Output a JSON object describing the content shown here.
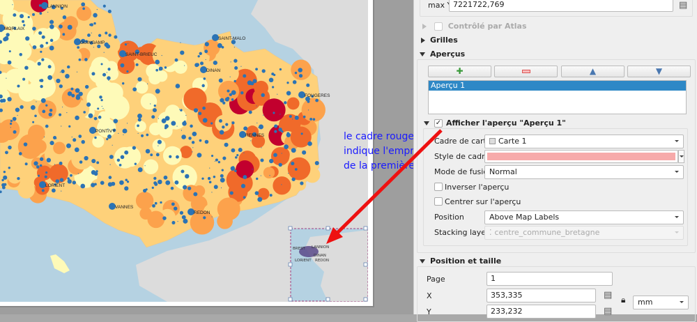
{
  "map": {
    "cities": [
      {
        "name": "LANNION",
        "lon": 68,
        "lat": 11
      },
      {
        "name": "MORLAIX",
        "lon": 6,
        "lat": 43
      },
      {
        "name": "GUINGAMP",
        "lon": 115,
        "lat": 63
      },
      {
        "name": "SAINT-BRIEUC",
        "lon": 180,
        "lat": 80
      },
      {
        "name": "SAINT-MALO",
        "lon": 313,
        "lat": 57
      },
      {
        "name": "DINAN",
        "lon": 296,
        "lat": 103
      },
      {
        "name": "FOUGERES",
        "lon": 437,
        "lat": 139
      },
      {
        "name": "PONTIVY",
        "lon": 137,
        "lat": 190
      },
      {
        "name": "RENNES",
        "lon": 352,
        "lat": 196
      },
      {
        "name": "LORIENT",
        "lon": 65,
        "lat": 268
      },
      {
        "name": "VANNES",
        "lon": 165,
        "lat": 299
      },
      {
        "name": "REDON",
        "lon": 278,
        "lat": 307
      }
    ],
    "overview_labels": [
      "BREST",
      "LANNION",
      "DINAN",
      "LORIENT",
      "REDON"
    ],
    "colors": {
      "sea": "#b5d2e2",
      "land": "#dcdcdc",
      "class1": "#fefab8",
      "class2": "#fed17a",
      "class3": "#fca24c",
      "class4": "#f06a2a",
      "class5": "#c2002e",
      "dots": "#2b73b5",
      "overview_frame": "#f4a6a6"
    }
  },
  "annotation": {
    "lines": [
      "le cadre rouge",
      "indique l'emprise",
      "de la première carte."
    ],
    "color": "#1a1aff",
    "arrow_color": "#ee1111"
  },
  "panel": {
    "extent": {
      "max_y_label": "max Y",
      "max_y_value": "7221722,769"
    },
    "atlas": {
      "label": "Contrôlé par Atlas",
      "checked": false,
      "enabled": false
    },
    "grids": {
      "label": "Grilles",
      "expanded": false
    },
    "overviews": {
      "label": "Aperçus",
      "expanded": true,
      "buttons": {
        "add": "add-icon",
        "remove": "remove-icon",
        "up": "up-icon",
        "down": "down-icon"
      },
      "list": [
        "Aperçu 1"
      ],
      "selected": "Aperçu 1",
      "show_label": "Afficher l'aperçu \"Aperçu 1\"",
      "show_checked": true,
      "map_frame_label": "Cadre de carte",
      "map_frame_value": "Carte 1",
      "frame_style_label": "Style de cadre",
      "frame_style_color": "#f7aaaa",
      "blend_label": "Mode de fusion",
      "blend_value": "Normal",
      "invert_label": "Inverser l'aperçu",
      "invert_checked": false,
      "center_label": "Centrer sur l'aperçu",
      "center_checked": false,
      "position_label": "Position",
      "position_value": "Above Map Labels",
      "stacking_label": "Stacking layer",
      "stacking_value": "centre_commune_bretagne"
    },
    "position_size": {
      "label": "Position et taille",
      "page_label": "Page",
      "page_value": "1",
      "x_label": "X",
      "x_value": "353,335",
      "y_label": "Y",
      "y_value": "233,232",
      "unit": "mm"
    }
  }
}
